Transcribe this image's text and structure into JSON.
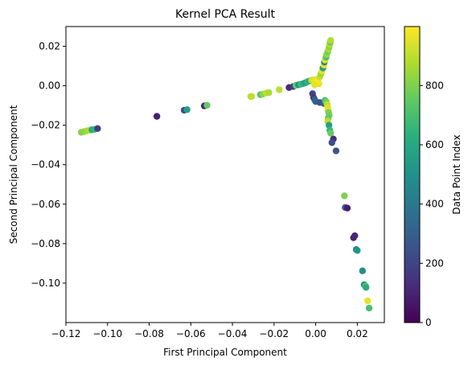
{
  "chart_data": {
    "type": "scatter",
    "title": "Kernel PCA Result",
    "xlabel": "First Principal Component",
    "ylabel": "Second Principal Component",
    "xlim": [
      -0.12,
      0.033
    ],
    "ylim": [
      -0.12,
      0.03
    ],
    "xticks": [
      -0.12,
      -0.1,
      -0.08,
      -0.06,
      -0.04,
      -0.02,
      0.0,
      0.02
    ],
    "xtick_labels": [
      "−0.12",
      "−0.10",
      "−0.08",
      "−0.06",
      "−0.04",
      "−0.02",
      "0.00",
      "0.02"
    ],
    "yticks": [
      0.02,
      0.0,
      -0.02,
      -0.04,
      -0.06,
      -0.08,
      -0.1
    ],
    "ytick_labels": [
      "0.02",
      "0.00",
      "−0.02",
      "−0.04",
      "−0.06",
      "−0.08",
      "−0.10"
    ],
    "colorbar": {
      "label": "Data Point Index",
      "colormap": "viridis",
      "range": [
        0,
        999
      ],
      "ticks": [
        0,
        200,
        400,
        600,
        800
      ],
      "tick_labels": [
        "0",
        "200",
        "400",
        "600",
        "800"
      ]
    },
    "grid": false,
    "points": [
      {
        "x": -0.1126,
        "y": -0.0236,
        "c": 800
      },
      {
        "x": -0.1112,
        "y": -0.0232,
        "c": 820
      },
      {
        "x": -0.1098,
        "y": -0.0228,
        "c": 860
      },
      {
        "x": -0.1085,
        "y": -0.0225,
        "c": 880
      },
      {
        "x": -0.1075,
        "y": -0.0223,
        "c": 600
      },
      {
        "x": -0.1062,
        "y": -0.0221,
        "c": 650
      },
      {
        "x": -0.1048,
        "y": -0.0217,
        "c": 180
      },
      {
        "x": -0.0763,
        "y": -0.0155,
        "c": 90
      },
      {
        "x": -0.0632,
        "y": -0.0124,
        "c": 230
      },
      {
        "x": -0.0618,
        "y": -0.0121,
        "c": 560
      },
      {
        "x": -0.0535,
        "y": -0.0102,
        "c": 100
      },
      {
        "x": -0.0522,
        "y": -0.0099,
        "c": 760
      },
      {
        "x": -0.0312,
        "y": -0.0055,
        "c": 870
      },
      {
        "x": -0.0308,
        "y": -0.0054,
        "c": 900
      },
      {
        "x": -0.0265,
        "y": -0.0045,
        "c": 700
      },
      {
        "x": -0.0255,
        "y": -0.0043,
        "c": 820
      },
      {
        "x": -0.0238,
        "y": -0.0037,
        "c": 900
      },
      {
        "x": -0.0225,
        "y": -0.0035,
        "c": 870
      },
      {
        "x": -0.0175,
        "y": -0.002,
        "c": 900
      },
      {
        "x": -0.0128,
        "y": -0.0009,
        "c": 120
      },
      {
        "x": -0.0108,
        "y": -0.0004,
        "c": 180
      },
      {
        "x": -0.0095,
        "y": 0.0002,
        "c": 760
      },
      {
        "x": -0.0082,
        "y": 0.0005,
        "c": 500
      },
      {
        "x": -0.007,
        "y": 0.0008,
        "c": 700
      },
      {
        "x": -0.006,
        "y": 0.0011,
        "c": 620
      },
      {
        "x": -0.005,
        "y": 0.0015,
        "c": 560
      },
      {
        "x": -0.004,
        "y": 0.002,
        "c": 650
      },
      {
        "x": -0.003,
        "y": 0.0024,
        "c": 600
      },
      {
        "x": -0.002,
        "y": 0.0028,
        "c": 900
      },
      {
        "x": -0.001,
        "y": 0.003,
        "c": 950
      },
      {
        "x": 0.0,
        "y": 0.003,
        "c": 960
      },
      {
        "x": 0.001,
        "y": 0.0028,
        "c": 980
      },
      {
        "x": 0.0015,
        "y": 0.001,
        "c": 940
      },
      {
        "x": 0.0012,
        "y": 0.002,
        "c": 980
      },
      {
        "x": 0.0005,
        "y": 0.0015,
        "c": 990
      },
      {
        "x": -0.0005,
        "y": 0.0005,
        "c": 960
      },
      {
        "x": 0.002,
        "y": 0.0045,
        "c": 900
      },
      {
        "x": 0.0025,
        "y": 0.006,
        "c": 850
      },
      {
        "x": 0.003,
        "y": 0.0075,
        "c": 960
      },
      {
        "x": 0.0035,
        "y": 0.009,
        "c": 560
      },
      {
        "x": 0.004,
        "y": 0.0105,
        "c": 960
      },
      {
        "x": 0.0042,
        "y": 0.012,
        "c": 420
      },
      {
        "x": 0.0045,
        "y": 0.013,
        "c": 940
      },
      {
        "x": 0.005,
        "y": 0.0145,
        "c": 700
      },
      {
        "x": 0.0052,
        "y": 0.0158,
        "c": 840
      },
      {
        "x": 0.0058,
        "y": 0.0172,
        "c": 780
      },
      {
        "x": 0.0062,
        "y": 0.0185,
        "c": 880
      },
      {
        "x": 0.0065,
        "y": 0.0198,
        "c": 820
      },
      {
        "x": 0.0068,
        "y": 0.021,
        "c": 900
      },
      {
        "x": 0.007,
        "y": 0.022,
        "c": 760
      },
      {
        "x": 0.0072,
        "y": 0.023,
        "c": 880
      },
      {
        "x": -0.0015,
        "y": -0.004,
        "c": 200
      },
      {
        "x": -0.001,
        "y": -0.006,
        "c": 150
      },
      {
        "x": -0.0005,
        "y": -0.007,
        "c": 280
      },
      {
        "x": 0.0,
        "y": -0.008,
        "c": 320
      },
      {
        "x": 0.002,
        "y": -0.0085,
        "c": 250
      },
      {
        "x": 0.004,
        "y": -0.009,
        "c": 300
      },
      {
        "x": 0.0045,
        "y": -0.0075,
        "c": 650
      },
      {
        "x": 0.005,
        "y": -0.008,
        "c": 780
      },
      {
        "x": 0.0055,
        "y": -0.0095,
        "c": 900
      },
      {
        "x": 0.0058,
        "y": -0.011,
        "c": 940
      },
      {
        "x": 0.006,
        "y": -0.0125,
        "c": 960
      },
      {
        "x": 0.0062,
        "y": -0.0135,
        "c": 800
      },
      {
        "x": 0.0065,
        "y": -0.015,
        "c": 780
      },
      {
        "x": 0.006,
        "y": -0.0165,
        "c": 760
      },
      {
        "x": 0.0058,
        "y": -0.018,
        "c": 900
      },
      {
        "x": 0.0064,
        "y": -0.02,
        "c": 560
      },
      {
        "x": 0.0068,
        "y": -0.0225,
        "c": 660
      },
      {
        "x": 0.0072,
        "y": -0.024,
        "c": 760
      },
      {
        "x": 0.0085,
        "y": -0.027,
        "c": 130
      },
      {
        "x": 0.0078,
        "y": -0.0288,
        "c": 240
      },
      {
        "x": 0.0098,
        "y": -0.033,
        "c": 260
      },
      {
        "x": 0.0138,
        "y": -0.0558,
        "c": 800
      },
      {
        "x": 0.0142,
        "y": -0.0617,
        "c": 300
      },
      {
        "x": 0.0152,
        "y": -0.062,
        "c": 80
      },
      {
        "x": 0.0182,
        "y": -0.077,
        "c": 90
      },
      {
        "x": 0.0188,
        "y": -0.076,
        "c": 110
      },
      {
        "x": 0.0195,
        "y": -0.083,
        "c": 450
      },
      {
        "x": 0.02,
        "y": -0.0835,
        "c": 520
      },
      {
        "x": 0.0225,
        "y": -0.0938,
        "c": 480
      },
      {
        "x": 0.0233,
        "y": -0.1008,
        "c": 470
      },
      {
        "x": 0.024,
        "y": -0.1015,
        "c": 760
      },
      {
        "x": 0.0242,
        "y": -0.1022,
        "c": 620
      },
      {
        "x": 0.025,
        "y": -0.109,
        "c": 960
      },
      {
        "x": 0.0257,
        "y": -0.1127,
        "c": 700
      }
    ]
  }
}
